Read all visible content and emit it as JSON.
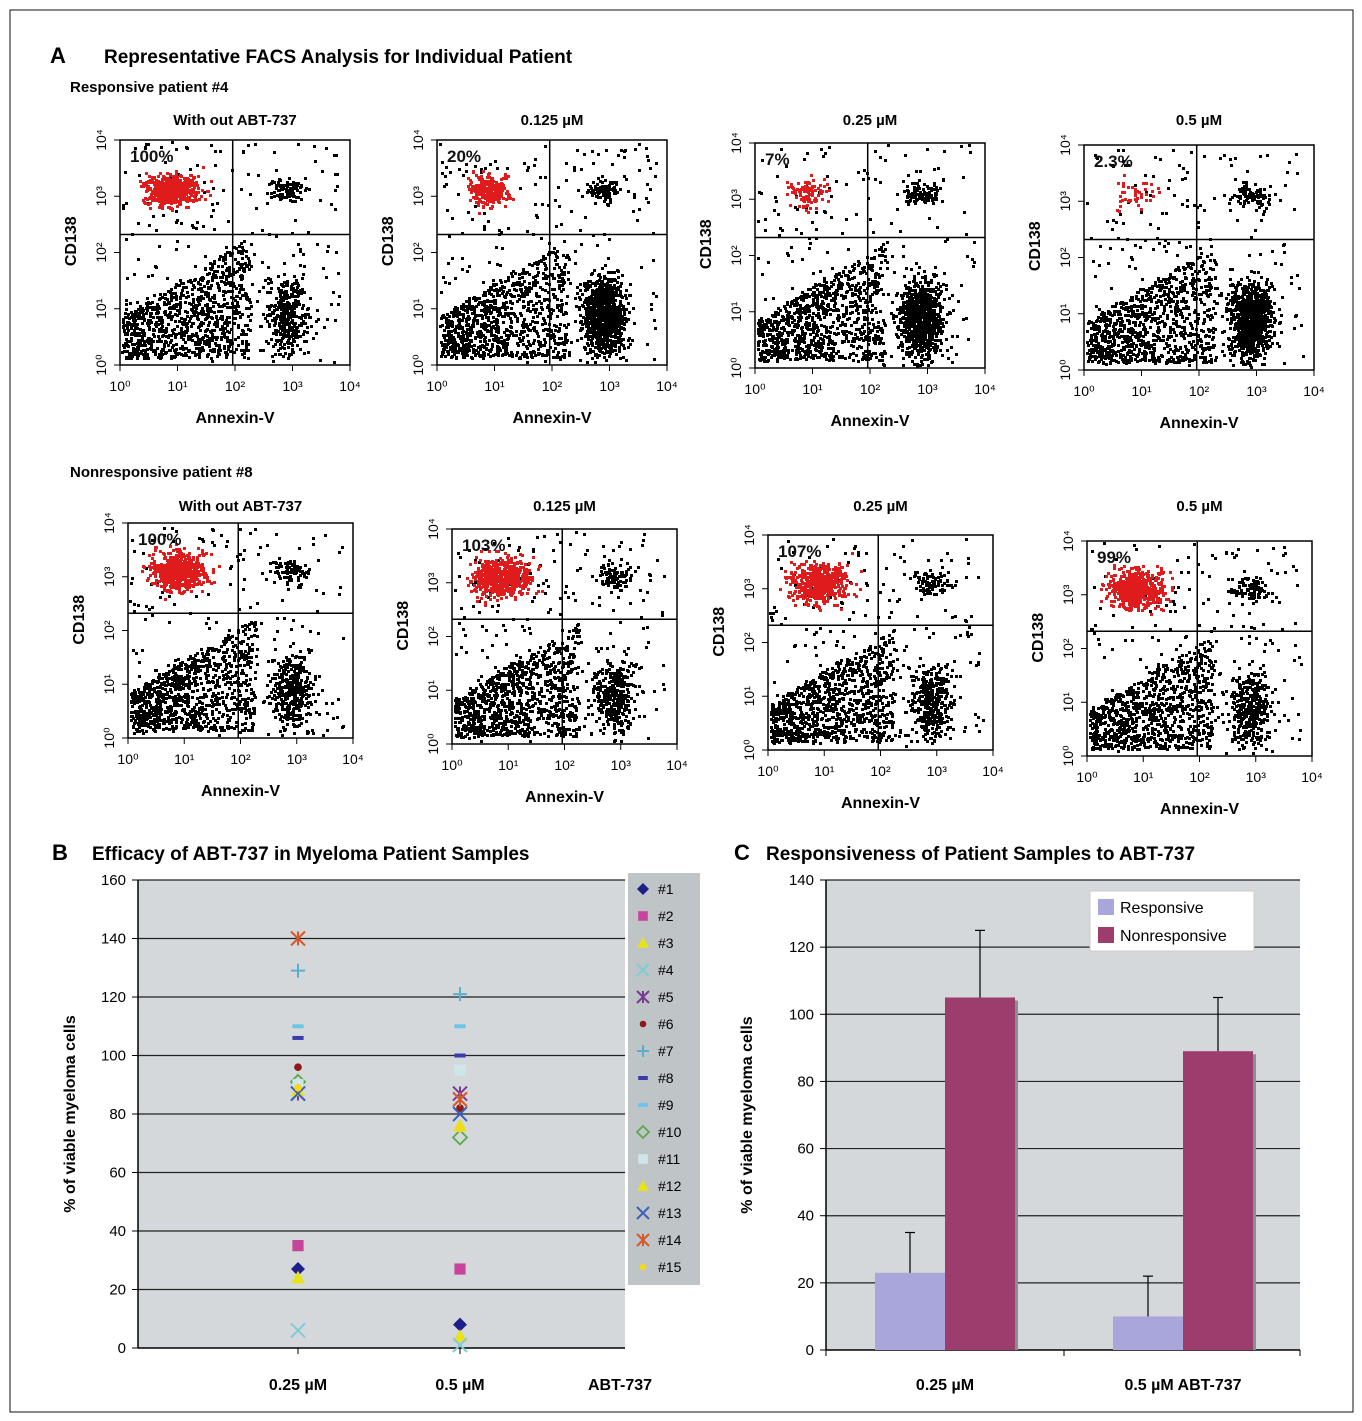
{
  "panel_a": {
    "letter": "A",
    "title": "Representative FACS Analysis for Individual Patient",
    "x_axis_label": "Annexin-V",
    "y_axis_label": "CD138",
    "tick_labels": [
      "10⁰",
      "10¹",
      "10²",
      "10³",
      "10⁴"
    ],
    "rows": [
      {
        "label": "Responsive patient #4",
        "plots": [
          {
            "title": "With out ABT-737",
            "percent": "100%",
            "red_amount": 1.0
          },
          {
            "title": "0.125 µM",
            "percent": "20%",
            "red_amount": 0.45
          },
          {
            "title": "0.25 µM",
            "percent": "7%",
            "red_amount": 0.18
          },
          {
            "title": "0.5 µM",
            "percent": "2.3%",
            "red_amount": 0.08
          }
        ]
      },
      {
        "label": "Nonresponsive patient #8",
        "plots": [
          {
            "title": "With out ABT-737",
            "percent": "100%",
            "red_amount": 1.0
          },
          {
            "title": "0.125 µM",
            "percent": "103%",
            "red_amount": 1.0
          },
          {
            "title": "0.25 µM",
            "percent": "107%",
            "red_amount": 1.0
          },
          {
            "title": "0.5 µM",
            "percent": "99%",
            "red_amount": 1.0
          }
        ]
      }
    ]
  },
  "chart_data": [
    {
      "panel": "B",
      "type": "scatter",
      "title": "Efficacy of ABT-737 in Myeloma Patient Samples",
      "ylabel": "% of viable myeloma cells",
      "xlabel": "ABT-737",
      "categories": [
        "0.25 µM",
        "0.5 µM"
      ],
      "ylim": [
        0,
        160
      ],
      "yticks": [
        0,
        20,
        40,
        60,
        80,
        100,
        120,
        140,
        160
      ],
      "grid": true,
      "legend_position": "right",
      "series": [
        {
          "name": "#1",
          "marker": "diamond",
          "color": "#1f1f8a",
          "values": [
            27,
            8
          ]
        },
        {
          "name": "#2",
          "marker": "square",
          "color": "#c6459b",
          "values": [
            35,
            27
          ]
        },
        {
          "name": "#3",
          "marker": "triangle",
          "color": "#e8e21a",
          "values": [
            24,
            4
          ]
        },
        {
          "name": "#4",
          "marker": "x",
          "color": "#7fcbd6",
          "values": [
            6,
            1
          ]
        },
        {
          "name": "#5",
          "marker": "star",
          "color": "#7b3a92",
          "values": [
            87,
            87
          ]
        },
        {
          "name": "#6",
          "marker": "dot",
          "color": "#8b1a1a",
          "values": [
            96,
            82
          ]
        },
        {
          "name": "#7",
          "marker": "plus",
          "color": "#5aaed0",
          "values": [
            129,
            121
          ]
        },
        {
          "name": "#8",
          "marker": "dash",
          "color": "#3a3aaa",
          "values": [
            106,
            100
          ]
        },
        {
          "name": "#9",
          "marker": "dash",
          "color": "#6cc4e6",
          "values": [
            110,
            110
          ]
        },
        {
          "name": "#10",
          "marker": "diamond-open",
          "color": "#5aaa4a",
          "values": [
            91,
            72
          ]
        },
        {
          "name": "#11",
          "marker": "square",
          "color": "#cfe6ea",
          "values": [
            90,
            95
          ]
        },
        {
          "name": "#12",
          "marker": "triangle",
          "color": "#e8e21a",
          "values": [
            88,
            76
          ]
        },
        {
          "name": "#13",
          "marker": "x",
          "color": "#3f5fb8",
          "values": [
            87,
            80
          ]
        },
        {
          "name": "#14",
          "marker": "star",
          "color": "#d8572a",
          "values": [
            140,
            85
          ]
        },
        {
          "name": "#15",
          "marker": "dot",
          "color": "#f5d81c",
          "values": [
            89,
            75
          ]
        }
      ]
    },
    {
      "panel": "C",
      "type": "bar",
      "title": "Responsiveness of Patient Samples to ABT-737",
      "ylabel": "% of viable myeloma cells",
      "categories": [
        "0.25 µM",
        "0.5 µM ABT-737"
      ],
      "ylim": [
        0,
        140
      ],
      "yticks": [
        0,
        20,
        40,
        60,
        80,
        100,
        120,
        140
      ],
      "grid": true,
      "legend_position": "top-right",
      "series": [
        {
          "name": "Responsive",
          "color": "#a9a6dc",
          "values": [
            23,
            10
          ],
          "errors": [
            12,
            12
          ]
        },
        {
          "name": "Nonresponsive",
          "color": "#9c3d6e",
          "values": [
            105,
            89
          ],
          "errors": [
            20,
            16
          ]
        }
      ]
    }
  ],
  "panel_b": {
    "letter": "B"
  },
  "panel_c": {
    "letter": "C"
  }
}
